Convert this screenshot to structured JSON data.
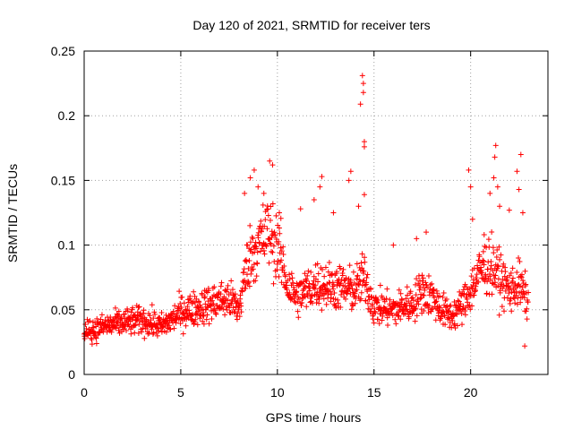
{
  "chart_data": {
    "type": "scatter",
    "title": "Day 120 of 2021, SRMTID for receiver ters",
    "xlabel": "GPS time / hours",
    "ylabel": "SRMTID / TECUs",
    "xlim": [
      0,
      24
    ],
    "ylim": [
      0,
      0.25
    ],
    "xticks": [
      0,
      5,
      10,
      15,
      20
    ],
    "xtick_labels": [
      "0",
      "5",
      "10",
      "15",
      "20"
    ],
    "yticks": [
      0,
      0.05,
      0.1,
      0.15,
      0.2,
      0.25
    ],
    "ytick_labels": [
      "0",
      "0.05",
      "0.1",
      "0.15",
      "0.2",
      "0.25"
    ],
    "grid": true,
    "marker": "+",
    "color": "#ff0000",
    "series": [
      {
        "name": "SRMTID",
        "trend": [
          {
            "x": 0.0,
            "y": 0.032
          },
          {
            "x": 1.0,
            "y": 0.037
          },
          {
            "x": 2.0,
            "y": 0.04
          },
          {
            "x": 3.0,
            "y": 0.042
          },
          {
            "x": 4.0,
            "y": 0.037
          },
          {
            "x": 4.5,
            "y": 0.042
          },
          {
            "x": 5.0,
            "y": 0.048
          },
          {
            "x": 6.0,
            "y": 0.052
          },
          {
            "x": 7.0,
            "y": 0.057
          },
          {
            "x": 7.5,
            "y": 0.058
          },
          {
            "x": 8.0,
            "y": 0.05
          },
          {
            "x": 8.5,
            "y": 0.09
          },
          {
            "x": 9.0,
            "y": 0.1
          },
          {
            "x": 9.5,
            "y": 0.11
          },
          {
            "x": 10.0,
            "y": 0.1
          },
          {
            "x": 10.5,
            "y": 0.07
          },
          {
            "x": 11.0,
            "y": 0.06
          },
          {
            "x": 12.0,
            "y": 0.07
          },
          {
            "x": 13.0,
            "y": 0.068
          },
          {
            "x": 14.0,
            "y": 0.065
          },
          {
            "x": 14.5,
            "y": 0.075
          },
          {
            "x": 15.0,
            "y": 0.052
          },
          {
            "x": 16.0,
            "y": 0.05
          },
          {
            "x": 17.0,
            "y": 0.055
          },
          {
            "x": 17.5,
            "y": 0.065
          },
          {
            "x": 18.0,
            "y": 0.06
          },
          {
            "x": 18.5,
            "y": 0.05
          },
          {
            "x": 19.0,
            "y": 0.045
          },
          {
            "x": 19.5,
            "y": 0.052
          },
          {
            "x": 20.0,
            "y": 0.065
          },
          {
            "x": 20.5,
            "y": 0.08
          },
          {
            "x": 21.0,
            "y": 0.085
          },
          {
            "x": 21.5,
            "y": 0.075
          },
          {
            "x": 22.0,
            "y": 0.065
          },
          {
            "x": 22.5,
            "y": 0.07
          },
          {
            "x": 23.0,
            "y": 0.055
          }
        ],
        "spikes": [
          {
            "x": 8.3,
            "y": 0.14
          },
          {
            "x": 8.6,
            "y": 0.152
          },
          {
            "x": 8.8,
            "y": 0.158
          },
          {
            "x": 9.0,
            "y": 0.145
          },
          {
            "x": 9.3,
            "y": 0.14
          },
          {
            "x": 9.6,
            "y": 0.165
          },
          {
            "x": 9.75,
            "y": 0.162
          },
          {
            "x": 10.1,
            "y": 0.125
          },
          {
            "x": 11.2,
            "y": 0.128
          },
          {
            "x": 11.9,
            "y": 0.135
          },
          {
            "x": 12.3,
            "y": 0.153
          },
          {
            "x": 12.2,
            "y": 0.145
          },
          {
            "x": 12.9,
            "y": 0.125
          },
          {
            "x": 13.8,
            "y": 0.157
          },
          {
            "x": 13.7,
            "y": 0.15
          },
          {
            "x": 14.3,
            "y": 0.209
          },
          {
            "x": 14.4,
            "y": 0.231
          },
          {
            "x": 14.45,
            "y": 0.225
          },
          {
            "x": 14.45,
            "y": 0.218
          },
          {
            "x": 14.5,
            "y": 0.18
          },
          {
            "x": 14.5,
            "y": 0.176
          },
          {
            "x": 14.5,
            "y": 0.139
          },
          {
            "x": 14.2,
            "y": 0.13
          },
          {
            "x": 16.0,
            "y": 0.1
          },
          {
            "x": 17.2,
            "y": 0.105
          },
          {
            "x": 17.7,
            "y": 0.11
          },
          {
            "x": 19.9,
            "y": 0.158
          },
          {
            "x": 20.0,
            "y": 0.145
          },
          {
            "x": 20.1,
            "y": 0.12
          },
          {
            "x": 20.7,
            "y": 0.108
          },
          {
            "x": 21.0,
            "y": 0.14
          },
          {
            "x": 21.2,
            "y": 0.152
          },
          {
            "x": 21.25,
            "y": 0.168
          },
          {
            "x": 21.3,
            "y": 0.177
          },
          {
            "x": 21.4,
            "y": 0.145
          },
          {
            "x": 21.5,
            "y": 0.13
          },
          {
            "x": 22.0,
            "y": 0.127
          },
          {
            "x": 22.4,
            "y": 0.157
          },
          {
            "x": 22.5,
            "y": 0.143
          },
          {
            "x": 22.6,
            "y": 0.17
          },
          {
            "x": 22.7,
            "y": 0.125
          },
          {
            "x": 22.8,
            "y": 0.022
          }
        ]
      }
    ]
  }
}
